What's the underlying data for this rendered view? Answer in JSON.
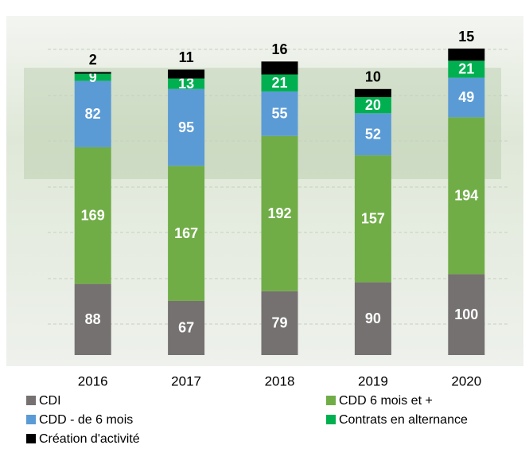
{
  "chart_data": {
    "type": "stacked_bar",
    "categories": [
      "2016",
      "2017",
      "2018",
      "2019",
      "2020"
    ],
    "series": [
      {
        "name": "CDI",
        "color": "#767171",
        "values": [
          88,
          67,
          79,
          90,
          100
        ]
      },
      {
        "name": "CDD 6 mois et +",
        "color": "#70ad47",
        "values": [
          169,
          167,
          192,
          157,
          194
        ]
      },
      {
        "name": "CDD - de 6 mois",
        "color": "#5b9bd5",
        "values": [
          82,
          95,
          55,
          52,
          49
        ]
      },
      {
        "name": "Contrats en alternance",
        "color": "#00b050",
        "values": [
          9,
          13,
          21,
          20,
          21
        ]
      },
      {
        "name": "Création d'activité",
        "color": "#000000",
        "values": [
          2,
          11,
          16,
          10,
          15
        ]
      }
    ],
    "ylim": [
      0,
      380
    ]
  }
}
